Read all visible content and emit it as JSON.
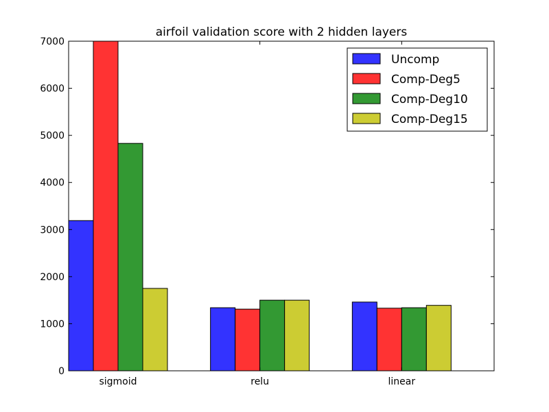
{
  "chart_data": {
    "type": "bar",
    "title": "airfoil validation score with 2 hidden layers",
    "xlabel": "",
    "ylabel": "",
    "categories": [
      "sigmoid",
      "relu",
      "linear"
    ],
    "ylim": [
      0,
      7000
    ],
    "yticks": [
      0,
      1000,
      2000,
      3000,
      4000,
      5000,
      6000,
      7000
    ],
    "legend_position": "top-right",
    "grid": false,
    "series": [
      {
        "name": "Uncomp",
        "color": "#3333ff",
        "values": [
          3190,
          1340,
          1460
        ]
      },
      {
        "name": "Comp-Deg5",
        "color": "#ff3333",
        "values": [
          7000,
          1310,
          1330
        ]
      },
      {
        "name": "Comp-Deg10",
        "color": "#339933",
        "values": [
          4830,
          1500,
          1340
        ]
      },
      {
        "name": "Comp-Deg15",
        "color": "#cccc33",
        "values": [
          1750,
          1500,
          1390
        ]
      }
    ]
  }
}
